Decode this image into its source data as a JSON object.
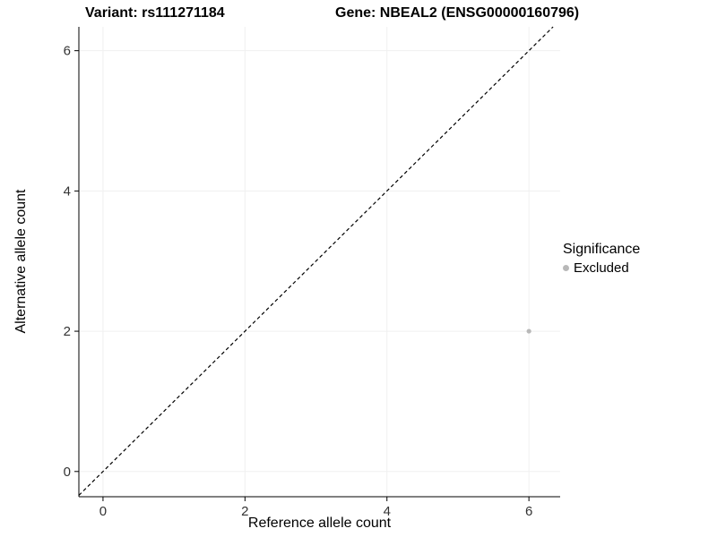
{
  "header": {
    "title_left": "Variant: rs111271184",
    "title_right": "Gene: NBEAL2 (ENSG00000160796)"
  },
  "chart_data": {
    "type": "scatter",
    "title_left": "Variant: rs111271184",
    "title_right": "Gene: NBEAL2 (ENSG00000160796)",
    "xlabel": "Reference allele count",
    "ylabel": "Alternative allele count",
    "xlim": [
      -0.34,
      6.44
    ],
    "ylim": [
      -0.36,
      6.34
    ],
    "xticks": [
      0,
      2,
      4,
      6
    ],
    "yticks": [
      0,
      2,
      4,
      6
    ],
    "grid": true,
    "grid_color": "#f0f0f0",
    "axis_color": "#000000",
    "tick_label_color": "#333333",
    "identity_line": {
      "style": "dashed",
      "slope": 1,
      "intercept": 0,
      "color": "#000000"
    },
    "series": [
      {
        "name": "Excluded",
        "color": "#b8b8b8",
        "points": [
          {
            "x": 6,
            "y": 2
          }
        ]
      }
    ],
    "legend": {
      "title": "Significance",
      "position": "right",
      "entries": [
        {
          "label": "Excluded",
          "color": "#b8b8b8"
        }
      ]
    }
  }
}
